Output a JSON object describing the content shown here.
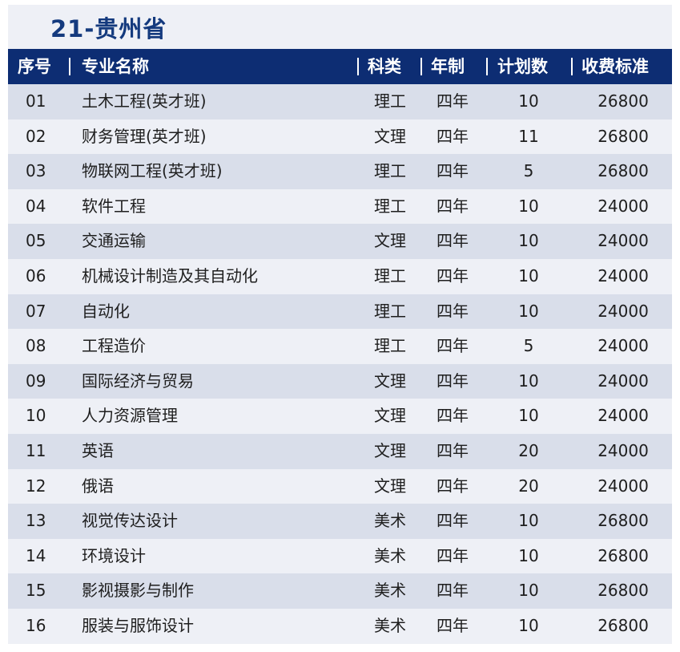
{
  "title": "21-贵州省",
  "headers": {
    "seq": "序号",
    "name": "专业名称",
    "subject": "科类",
    "duration": "年制",
    "plan": "计划数",
    "fee": "收费标准"
  },
  "rows": [
    {
      "seq": "01",
      "name": "土木工程(英才班)",
      "subject": "理工",
      "duration": "四年",
      "plan": "10",
      "fee": "26800"
    },
    {
      "seq": "02",
      "name": "财务管理(英才班)",
      "subject": "文理",
      "duration": "四年",
      "plan": "11",
      "fee": "26800"
    },
    {
      "seq": "03",
      "name": "物联网工程(英才班)",
      "subject": "理工",
      "duration": "四年",
      "plan": "5",
      "fee": "26800"
    },
    {
      "seq": "04",
      "name": "软件工程",
      "subject": "理工",
      "duration": "四年",
      "plan": "10",
      "fee": "24000"
    },
    {
      "seq": "05",
      "name": "交通运输",
      "subject": "文理",
      "duration": "四年",
      "plan": "10",
      "fee": "24000"
    },
    {
      "seq": "06",
      "name": "机械设计制造及其自动化",
      "subject": "理工",
      "duration": "四年",
      "plan": "10",
      "fee": "24000"
    },
    {
      "seq": "07",
      "name": "自动化",
      "subject": "理工",
      "duration": "四年",
      "plan": "10",
      "fee": "24000"
    },
    {
      "seq": "08",
      "name": "工程造价",
      "subject": "理工",
      "duration": "四年",
      "plan": "5",
      "fee": "24000"
    },
    {
      "seq": "09",
      "name": "国际经济与贸易",
      "subject": "文理",
      "duration": "四年",
      "plan": "10",
      "fee": "24000"
    },
    {
      "seq": "10",
      "name": "人力资源管理",
      "subject": "文理",
      "duration": "四年",
      "plan": "10",
      "fee": "24000"
    },
    {
      "seq": "11",
      "name": "英语",
      "subject": "文理",
      "duration": "四年",
      "plan": "20",
      "fee": "24000"
    },
    {
      "seq": "12",
      "name": "俄语",
      "subject": "文理",
      "duration": "四年",
      "plan": "20",
      "fee": "24000"
    },
    {
      "seq": "13",
      "name": "视觉传达设计",
      "subject": "美术",
      "duration": "四年",
      "plan": "10",
      "fee": "26800"
    },
    {
      "seq": "14",
      "name": "环境设计",
      "subject": "美术",
      "duration": "四年",
      "plan": "10",
      "fee": "26800"
    },
    {
      "seq": "15",
      "name": "影视摄影与制作",
      "subject": "美术",
      "duration": "四年",
      "plan": "10",
      "fee": "26800"
    },
    {
      "seq": "16",
      "name": "服装与服饰设计",
      "subject": "美术",
      "duration": "四年",
      "plan": "10",
      "fee": "26800"
    }
  ],
  "colors": {
    "header_bg": "#0d2d73",
    "title": "#143a7e",
    "row_odd": "#d9deea",
    "row_even": "#eef0f6"
  }
}
